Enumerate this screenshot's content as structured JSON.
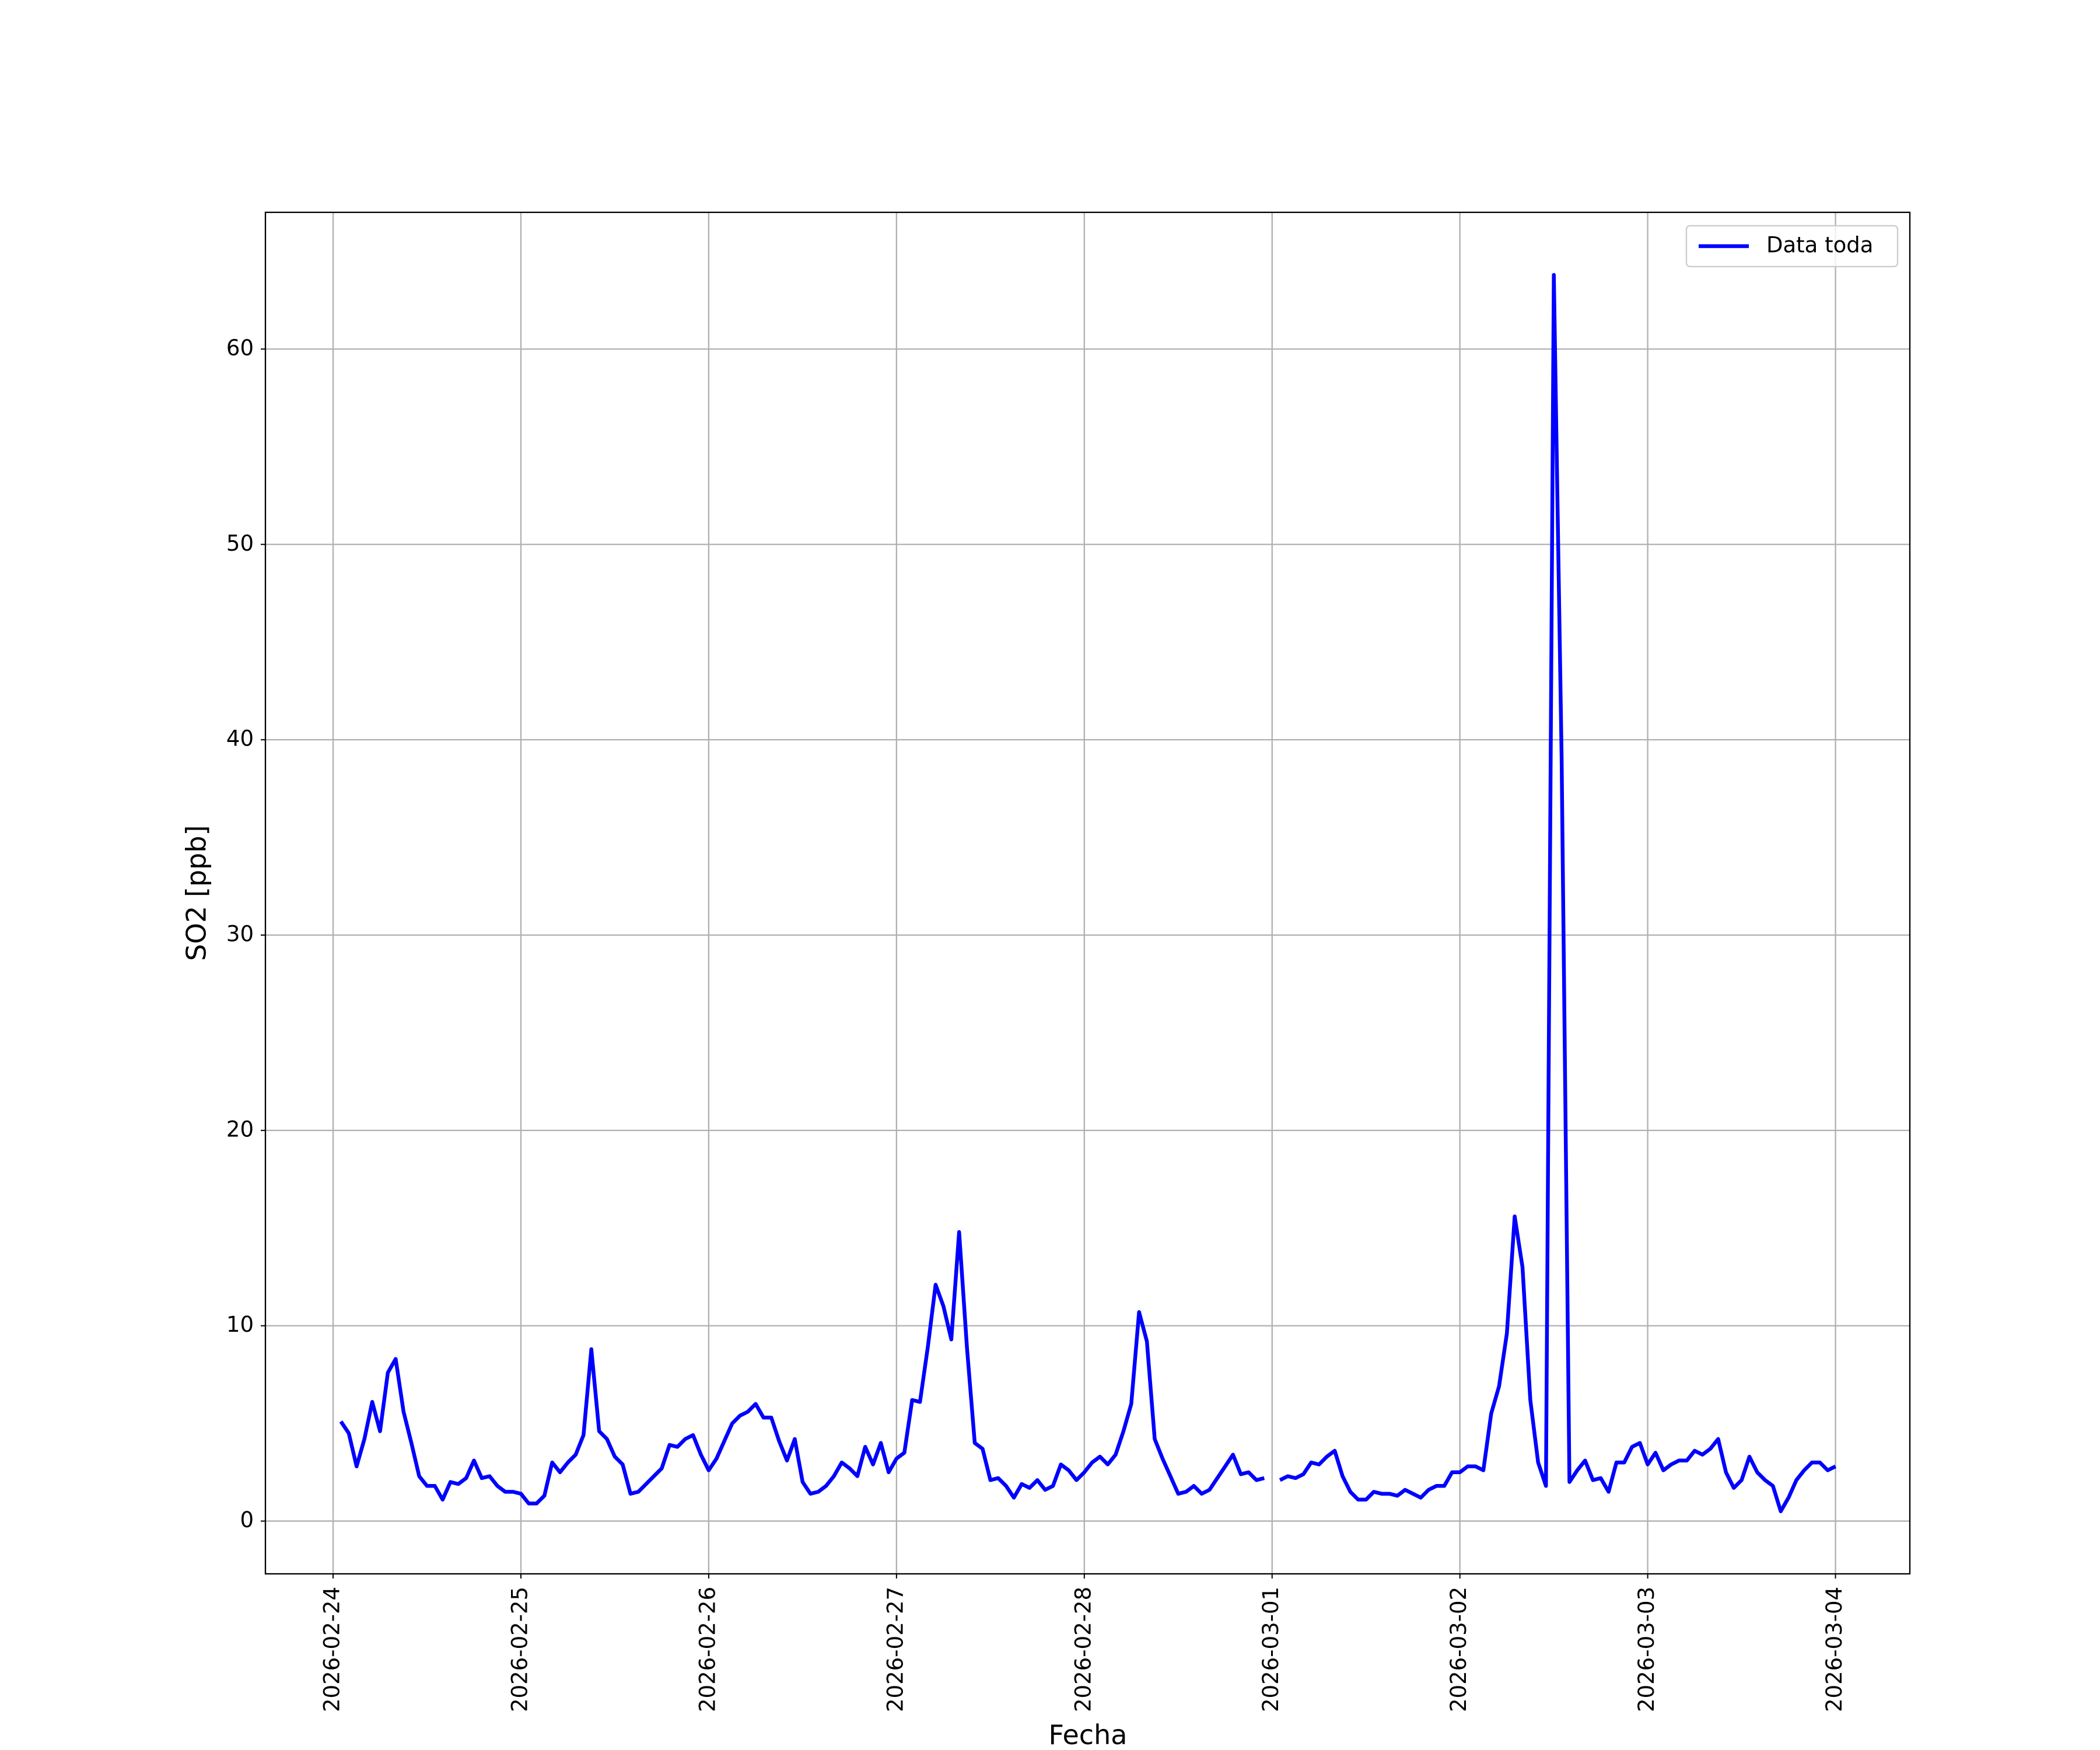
{
  "chart_data": {
    "type": "line",
    "xlabel": "Fecha",
    "ylabel": "SO2 [ppb]",
    "x": [
      "2026-02-24 01:00",
      "2026-02-24 02:00",
      "2026-02-24 03:00",
      "2026-02-24 04:00",
      "2026-02-24 05:00",
      "2026-02-24 06:00",
      "2026-02-24 07:00",
      "2026-02-24 08:00",
      "2026-02-24 09:00",
      "2026-02-24 10:00",
      "2026-02-24 11:00",
      "2026-02-24 12:00",
      "2026-02-24 13:00",
      "2026-02-24 14:00",
      "2026-02-24 15:00",
      "2026-02-24 16:00",
      "2026-02-24 17:00",
      "2026-02-24 18:00",
      "2026-02-24 19:00",
      "2026-02-24 20:00",
      "2026-02-24 21:00",
      "2026-02-24 22:00",
      "2026-02-24 23:00",
      "2026-02-25 00:00",
      "2026-02-25 01:00",
      "2026-02-25 02:00",
      "2026-02-25 03:00",
      "2026-02-25 04:00",
      "2026-02-25 05:00",
      "2026-02-25 06:00",
      "2026-02-25 07:00",
      "2026-02-25 08:00",
      "2026-02-25 09:00",
      "2026-02-25 10:00",
      "2026-02-25 11:00",
      "2026-02-25 12:00",
      "2026-02-25 13:00",
      "2026-02-25 14:00",
      "2026-02-25 15:00",
      "2026-02-25 16:00",
      "2026-02-25 17:00",
      "2026-02-25 18:00",
      "2026-02-25 19:00",
      "2026-02-25 20:00",
      "2026-02-25 21:00",
      "2026-02-25 22:00",
      "2026-02-25 23:00",
      "2026-02-26 00:00",
      "2026-02-26 01:00",
      "2026-02-26 02:00",
      "2026-02-26 03:00",
      "2026-02-26 04:00",
      "2026-02-26 05:00",
      "2026-02-26 06:00",
      "2026-02-26 07:00",
      "2026-02-26 08:00",
      "2026-02-26 09:00",
      "2026-02-26 10:00",
      "2026-02-26 11:00",
      "2026-02-26 12:00",
      "2026-02-26 13:00",
      "2026-02-26 14:00",
      "2026-02-26 15:00",
      "2026-02-26 16:00",
      "2026-02-26 17:00",
      "2026-02-26 18:00",
      "2026-02-26 19:00",
      "2026-02-26 20:00",
      "2026-02-26 21:00",
      "2026-02-26 22:00",
      "2026-02-26 23:00",
      "2026-02-27 00:00",
      "2026-02-27 01:00",
      "2026-02-27 02:00",
      "2026-02-27 03:00",
      "2026-02-27 04:00",
      "2026-02-27 05:00",
      "2026-02-27 06:00",
      "2026-02-27 07:00",
      "2026-02-27 08:00",
      "2026-02-27 09:00",
      "2026-02-27 10:00",
      "2026-02-27 11:00",
      "2026-02-27 12:00",
      "2026-02-27 13:00",
      "2026-02-27 14:00",
      "2026-02-27 15:00",
      "2026-02-27 16:00",
      "2026-02-27 17:00",
      "2026-02-27 18:00",
      "2026-02-27 19:00",
      "2026-02-27 20:00",
      "2026-02-27 21:00",
      "2026-02-27 22:00",
      "2026-02-27 23:00",
      "2026-02-28 00:00",
      "2026-02-28 01:00",
      "2026-02-28 02:00",
      "2026-02-28 03:00",
      "2026-02-28 04:00",
      "2026-02-28 05:00",
      "2026-02-28 06:00",
      "2026-02-28 07:00",
      "2026-02-28 08:00",
      "2026-02-28 09:00",
      "2026-02-28 10:00",
      "2026-02-28 11:00",
      "2026-02-28 12:00",
      "2026-02-28 13:00",
      "2026-02-28 14:00",
      "2026-02-28 15:00",
      "2026-02-28 16:00",
      "2026-02-28 17:00",
      "2026-02-28 18:00",
      "2026-02-28 19:00",
      "2026-02-28 20:00",
      "2026-02-28 21:00",
      "2026-02-28 22:00",
      "2026-02-28 23:00",
      "2026-03-01 00:00",
      "2026-03-01 01:00",
      "2026-03-01 02:00",
      "2026-03-01 03:00",
      "2026-03-01 04:00",
      "2026-03-01 05:00",
      "2026-03-01 06:00",
      "2026-03-01 07:00",
      "2026-03-01 08:00",
      "2026-03-01 09:00",
      "2026-03-01 10:00",
      "2026-03-01 11:00",
      "2026-03-01 12:00",
      "2026-03-01 13:00",
      "2026-03-01 14:00",
      "2026-03-01 15:00",
      "2026-03-01 16:00",
      "2026-03-01 17:00",
      "2026-03-01 18:00",
      "2026-03-01 19:00",
      "2026-03-01 20:00",
      "2026-03-01 21:00",
      "2026-03-01 22:00",
      "2026-03-01 23:00",
      "2026-03-02 00:00",
      "2026-03-02 01:00",
      "2026-03-02 02:00",
      "2026-03-02 03:00",
      "2026-03-02 04:00",
      "2026-03-02 05:00",
      "2026-03-02 06:00",
      "2026-03-02 07:00",
      "2026-03-02 08:00",
      "2026-03-02 09:00",
      "2026-03-02 10:00",
      "2026-03-02 11:00",
      "2026-03-02 12:00",
      "2026-03-02 13:00",
      "2026-03-02 14:00",
      "2026-03-02 15:00",
      "2026-03-02 16:00",
      "2026-03-02 17:00",
      "2026-03-02 18:00",
      "2026-03-02 19:00",
      "2026-03-02 20:00",
      "2026-03-02 21:00",
      "2026-03-02 22:00",
      "2026-03-02 23:00",
      "2026-03-03 00:00",
      "2026-03-03 01:00",
      "2026-03-03 02:00",
      "2026-03-03 03:00",
      "2026-03-03 04:00",
      "2026-03-03 05:00",
      "2026-03-03 06:00",
      "2026-03-03 07:00",
      "2026-03-03 08:00",
      "2026-03-03 09:00",
      "2026-03-03 10:00",
      "2026-03-03 11:00",
      "2026-03-03 12:00",
      "2026-03-03 13:00",
      "2026-03-03 14:00",
      "2026-03-03 15:00",
      "2026-03-03 16:00",
      "2026-03-03 17:00",
      "2026-03-03 18:00",
      "2026-03-03 19:00",
      "2026-03-03 20:00",
      "2026-03-03 21:00",
      "2026-03-03 22:00",
      "2026-03-03 23:00",
      "2026-03-04 00:00"
    ],
    "series": [
      {
        "name": "Data toda",
        "color": "#0000ff",
        "values": [
          5.1,
          4.5,
          2.8,
          4.2,
          6.1,
          4.6,
          7.6,
          8.3,
          5.6,
          4.0,
          2.3,
          1.8,
          1.8,
          1.1,
          2.0,
          1.9,
          2.2,
          3.1,
          2.2,
          2.3,
          1.8,
          1.5,
          1.5,
          1.4,
          0.9,
          0.9,
          1.3,
          3.0,
          2.5,
          3.0,
          3.4,
          4.4,
          8.8,
          4.6,
          4.2,
          3.3,
          2.9,
          1.4,
          1.5,
          1.9,
          2.3,
          2.7,
          3.9,
          3.8,
          4.2,
          4.4,
          3.4,
          2.6,
          3.2,
          4.1,
          5.0,
          5.4,
          5.6,
          6.0,
          5.3,
          5.3,
          4.1,
          3.1,
          4.2,
          2.0,
          1.4,
          1.5,
          1.8,
          2.3,
          3.0,
          2.7,
          2.3,
          3.8,
          2.9,
          4.0,
          2.5,
          3.2,
          3.5,
          6.2,
          6.1,
          8.9,
          12.1,
          11.0,
          9.3,
          14.8,
          8.9,
          4.0,
          3.7,
          2.1,
          2.2,
          1.8,
          1.2,
          1.9,
          1.7,
          2.1,
          1.6,
          1.8,
          2.9,
          2.6,
          2.1,
          2.5,
          3.0,
          3.3,
          2.9,
          3.4,
          4.6,
          6.0,
          10.7,
          9.2,
          4.2,
          3.2,
          2.3,
          1.4,
          1.5,
          1.8,
          1.4,
          1.6,
          2.2,
          2.8,
          3.4,
          2.4,
          2.5,
          2.1,
          2.2,
          null,
          2.1,
          2.3,
          2.2,
          2.4,
          3.0,
          2.9,
          3.3,
          3.6,
          2.3,
          1.5,
          1.1,
          1.1,
          1.5,
          1.4,
          1.4,
          1.3,
          1.6,
          1.4,
          1.2,
          1.6,
          1.8,
          1.8,
          2.5,
          2.5,
          2.8,
          2.8,
          2.6,
          5.5,
          6.9,
          9.6,
          15.6,
          13.0,
          6.2,
          3.0,
          1.8,
          63.8,
          39.0,
          2.0,
          2.6,
          3.1,
          2.1,
          2.2,
          1.5,
          3.0,
          3.0,
          3.8,
          4.0,
          2.9,
          3.5,
          2.6,
          2.9,
          3.1,
          3.1,
          3.6,
          3.4,
          3.7,
          4.2,
          2.5,
          1.7,
          2.1,
          3.3,
          2.5,
          2.1,
          1.8,
          0.5,
          1.2,
          2.1,
          2.6,
          3.0,
          3.0,
          2.6,
          2.8
        ]
      }
    ],
    "xlim": [
      "2026-02-23 15:21",
      "2026-03-04 09:30"
    ],
    "xticks": [
      "2026-02-24",
      "2026-02-25",
      "2026-02-26",
      "2026-02-27",
      "2026-02-28",
      "2026-03-01",
      "2026-03-02",
      "2026-03-03",
      "2026-03-04"
    ],
    "ylim": [
      -2.7,
      67
    ],
    "yticks": [
      0,
      10,
      20,
      30,
      40,
      50,
      60
    ],
    "grid": true,
    "legend": "upper right"
  }
}
